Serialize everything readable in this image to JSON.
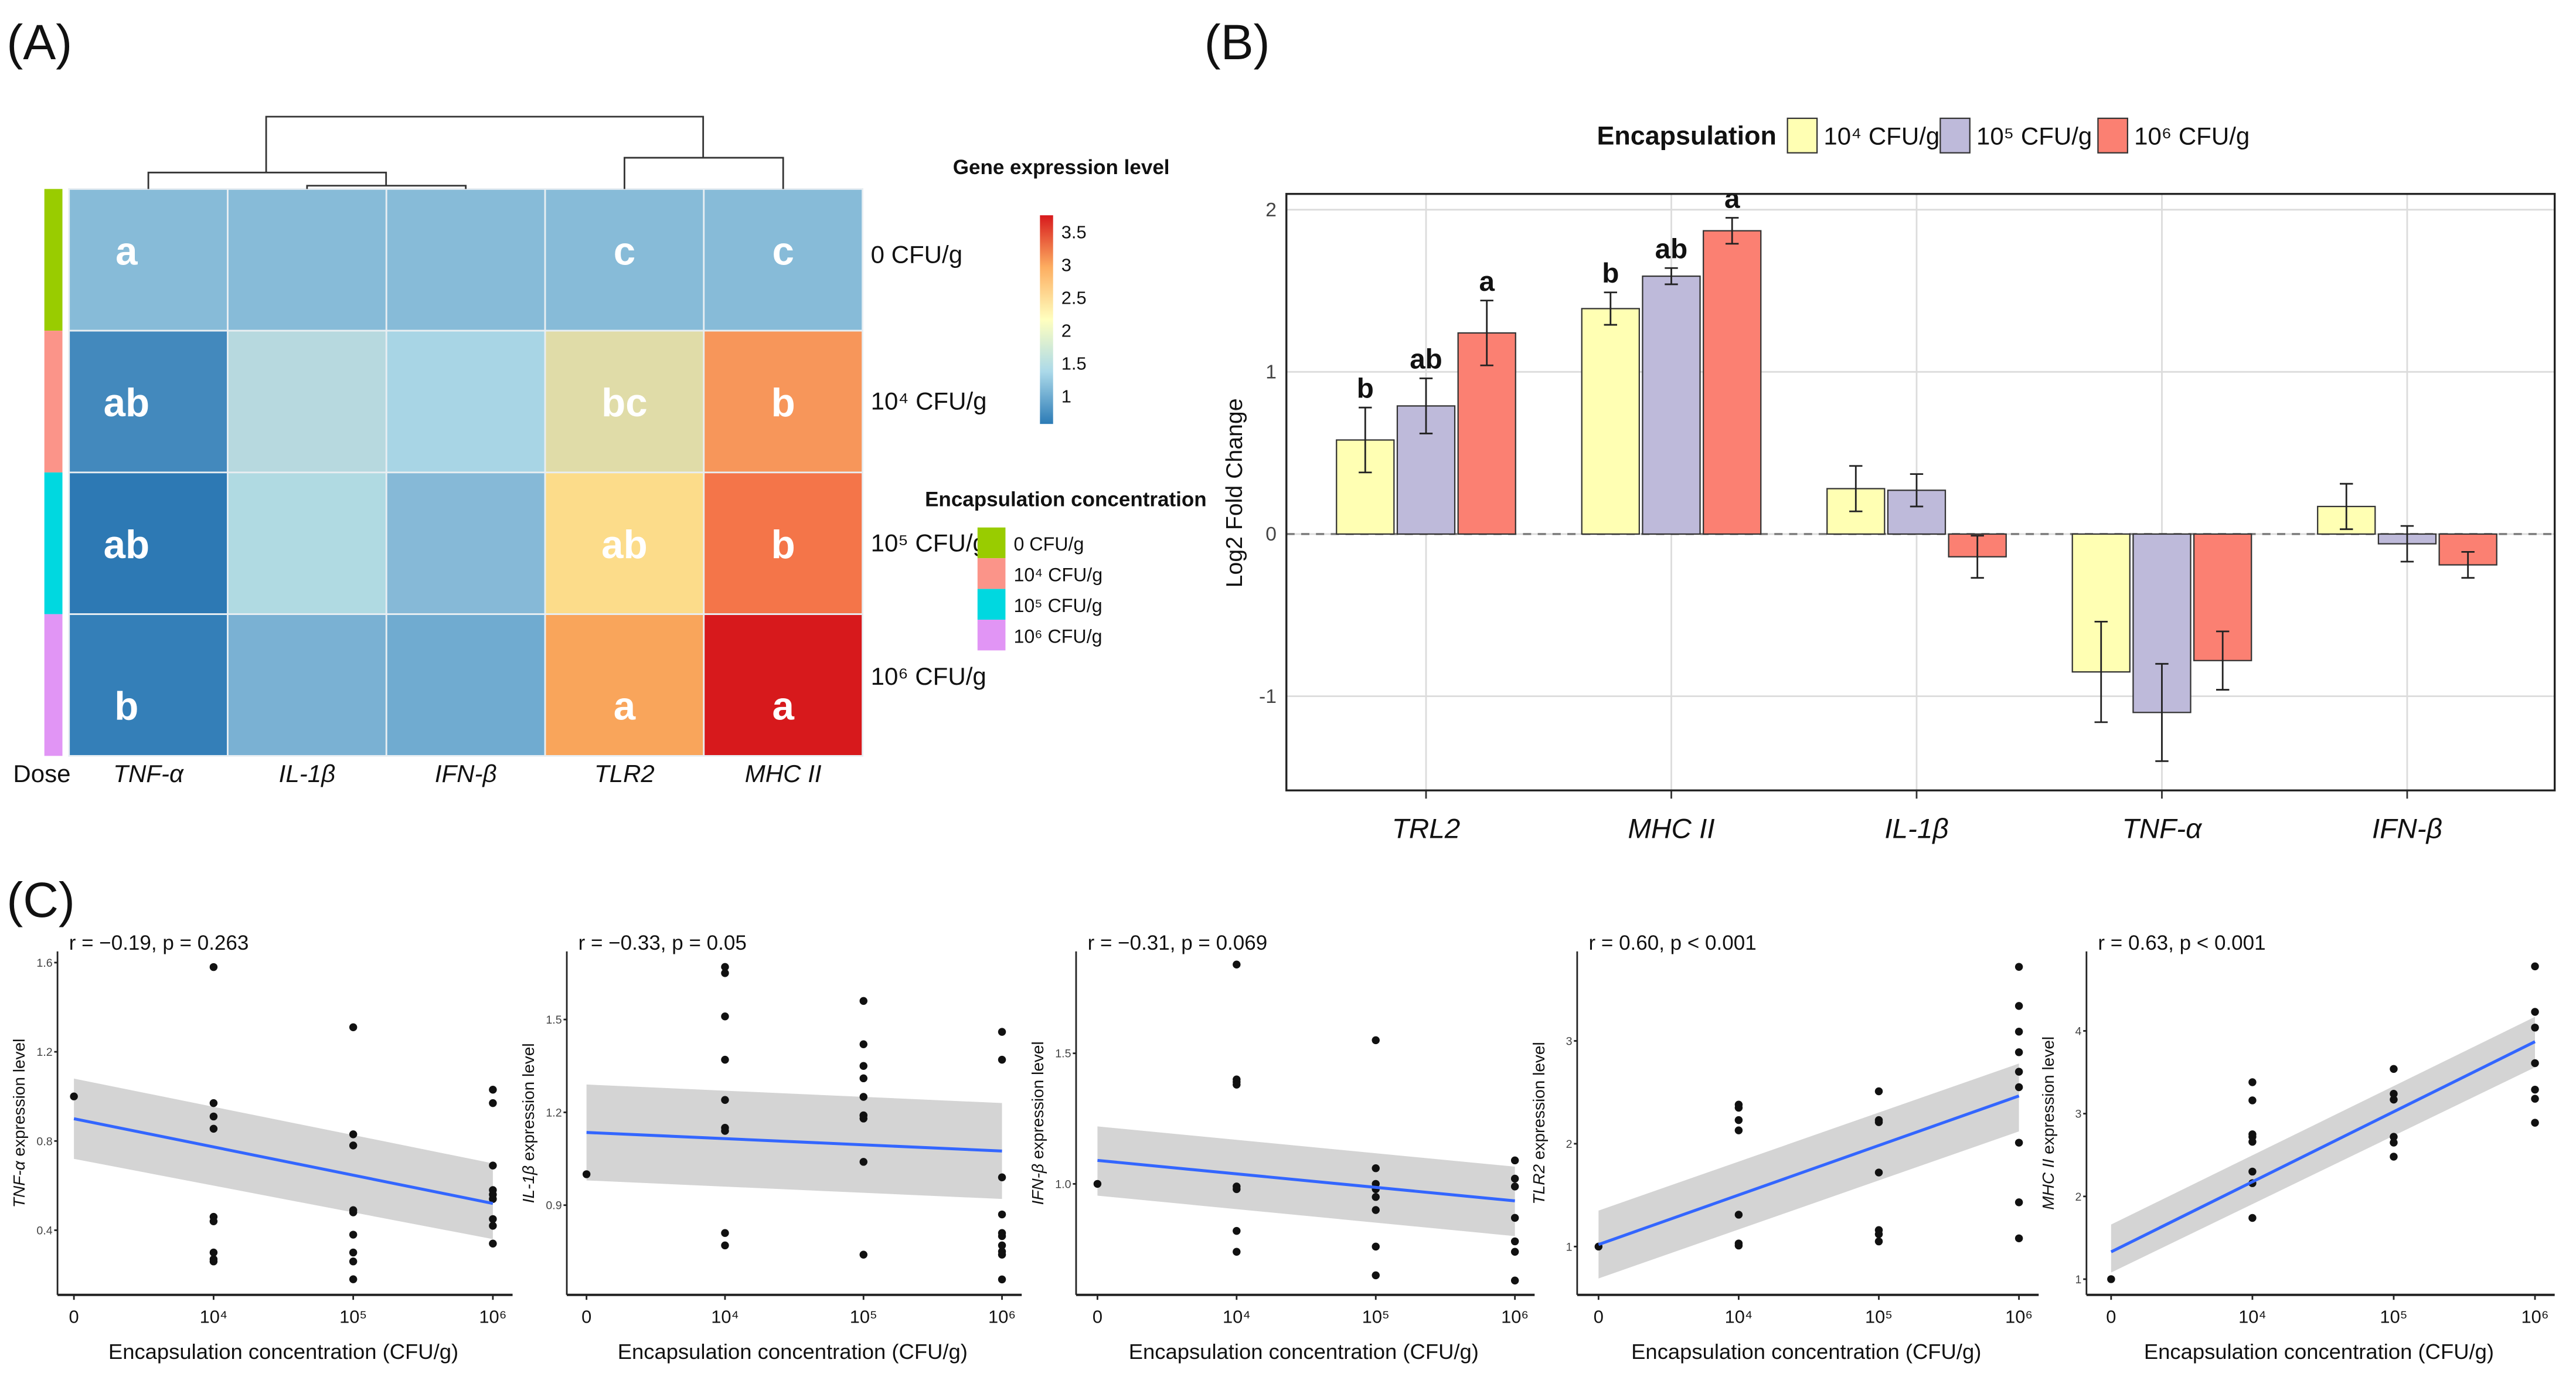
{
  "panel_labels": {
    "a": "(A)",
    "b": "(B)",
    "c": "(C)"
  },
  "chart_data": [
    {
      "type": "heatmap",
      "panel": "A",
      "columns": [
        "TNF-α",
        "IL-1β",
        "IFN-β",
        "TLR2",
        "MHC II"
      ],
      "rows": [
        "0 CFU/g",
        "10⁴ CFU/g",
        "10⁵ CFU/g",
        "10⁶ CFU/g"
      ],
      "annotation_label": "Dose",
      "annotation_colors": [
        "#99cc00",
        "#fb9489",
        "#00d8e0",
        "#e195f5"
      ],
      "values": [
        [
          1.0,
          1.0,
          1.0,
          1.0,
          1.0
        ],
        [
          0.55,
          1.21,
          1.13,
          1.49,
          2.62
        ],
        [
          0.47,
          1.21,
          0.96,
          1.73,
          3.01
        ],
        [
          0.58,
          0.91,
          0.88,
          2.36,
          3.66
        ]
      ],
      "cell_colors": [
        [
          "#87bbd8",
          "#87bbd8",
          "#87bbd8",
          "#87bbd8",
          "#87bbd8"
        ],
        [
          "#4389bd",
          "#b7d9df",
          "#a8d5e5",
          "#e0dca8",
          "#f7965a"
        ],
        [
          "#2d79b4",
          "#b0dae2",
          "#86b9d7",
          "#fcdc8a",
          "#f47549"
        ],
        [
          "#347fb8",
          "#7ab1d3",
          "#70abd0",
          "#f9a55b",
          "#d7191c"
        ]
      ],
      "letters": [
        [
          "a",
          "",
          "",
          "c",
          "c"
        ],
        [
          "ab",
          "",
          "",
          "bc",
          "b"
        ],
        [
          "ab",
          "",
          "",
          "ab",
          "b"
        ],
        [
          "b",
          "",
          "",
          "a",
          "a"
        ]
      ],
      "dendrogram": "columns clustered: (TNF-α, (IL-1β, IFN-β)), (TLR2, MHC II)",
      "colorbar": {
        "title": "Gene expression level",
        "ticks": [
          "3.5",
          "3",
          "2.5",
          "2",
          "1.5",
          "1"
        ],
        "tick_values": [
          3.5,
          3,
          2.5,
          2,
          1.5,
          1
        ],
        "range": [
          0.6,
          3.75
        ],
        "colors": [
          "#d7191c",
          "#fdae61",
          "#ffffbf",
          "#abd9e9",
          "#2c7bb6"
        ]
      },
      "legend": {
        "title": "Encapsulation concentration",
        "items": [
          "0 CFU/g",
          "10⁴ CFU/g",
          "10⁵ CFU/g",
          "10⁶ CFU/g"
        ]
      }
    },
    {
      "type": "bar",
      "panel": "B",
      "categories": [
        "TRL2",
        "MHC II",
        "IL-1β",
        "TNF-α",
        "IFN-β"
      ],
      "ylabel": "Log2 Fold Change",
      "ylim": [
        -1.57,
        2.1
      ],
      "yticks": [
        -1,
        0,
        1,
        2
      ],
      "ytick_labels": [
        "-1",
        "0",
        "1",
        "2"
      ],
      "grid": true,
      "legend": {
        "title": "Encapsulation",
        "position": "top"
      },
      "series": [
        {
          "name": "10⁴ CFU/g",
          "color": "#ffffb3",
          "values": [
            0.58,
            1.39,
            0.28,
            -0.85,
            0.17
          ],
          "err": [
            0.2,
            0.1,
            0.14,
            0.31,
            0.14
          ],
          "letters": [
            "b",
            "b",
            "",
            "",
            ""
          ]
        },
        {
          "name": "10⁵ CFU/g",
          "color": "#bebada",
          "values": [
            0.79,
            1.59,
            0.27,
            -1.1,
            -0.06
          ],
          "err": [
            0.17,
            0.05,
            0.1,
            0.3,
            0.11
          ],
          "letters": [
            "ab",
            "ab",
            "",
            "",
            ""
          ]
        },
        {
          "name": "10⁶ CFU/g",
          "color": "#fb8072",
          "values": [
            1.24,
            1.87,
            -0.14,
            -0.78,
            -0.19
          ],
          "err": [
            0.2,
            0.08,
            0.13,
            0.18,
            0.08
          ],
          "letters": [
            "a",
            "a",
            "",
            "",
            ""
          ]
        }
      ]
    },
    {
      "type": "scatter",
      "panel": "C",
      "gene": "TNF-α",
      "title": "r = −0.19, p = 0.263",
      "ylabel_suffix": " expression level",
      "xlabel": "Encapsulation concentration (CFU/g)",
      "x_categories": [
        "0",
        "10⁴",
        "10⁵",
        "10⁶"
      ],
      "ylim": [
        0.11,
        1.65
      ],
      "yticks": [
        0.4,
        0.8,
        1.2,
        1.6
      ],
      "ytick_labels": [
        "0.4",
        "0.8",
        "1.2",
        "1.6"
      ],
      "points": [
        [
          0,
          1.0
        ],
        [
          1,
          1.58
        ],
        [
          1,
          0.97
        ],
        [
          1,
          0.91
        ],
        [
          1,
          0.855
        ],
        [
          1,
          0.46
        ],
        [
          1,
          0.44
        ],
        [
          1,
          0.3
        ],
        [
          1,
          0.27
        ],
        [
          1,
          0.26
        ],
        [
          2,
          1.31
        ],
        [
          2,
          0.83
        ],
        [
          2,
          0.78
        ],
        [
          2,
          0.49
        ],
        [
          2,
          0.48
        ],
        [
          2,
          0.38
        ],
        [
          2,
          0.3
        ],
        [
          2,
          0.26
        ],
        [
          2,
          0.18
        ],
        [
          3,
          1.03
        ],
        [
          3,
          0.97
        ],
        [
          3,
          0.69
        ],
        [
          3,
          0.58
        ],
        [
          3,
          0.56
        ],
        [
          3,
          0.54
        ],
        [
          3,
          0.45
        ],
        [
          3,
          0.42
        ],
        [
          3,
          0.34
        ]
      ],
      "fit": [
        0.9,
        0.52
      ],
      "ci_lower": [
        0.72,
        0.36
      ],
      "ci_upper": [
        1.08,
        0.7
      ]
    },
    {
      "type": "scatter",
      "panel": "C",
      "gene": "IL-1β",
      "title": "r = −0.33, p = 0.05",
      "ylabel_suffix": " expression level",
      "xlabel": "Encapsulation concentration (CFU/g)",
      "x_categories": [
        "0",
        "10⁴",
        "10⁵",
        "10⁶"
      ],
      "ylim": [
        0.61,
        1.72
      ],
      "yticks": [
        0.9,
        1.2,
        1.5
      ],
      "ytick_labels": [
        "0.9",
        "1.2",
        "1.5"
      ],
      "points": [
        [
          0,
          1.0
        ],
        [
          1,
          1.67
        ],
        [
          1,
          1.65
        ],
        [
          1,
          1.51
        ],
        [
          1,
          1.37
        ],
        [
          1,
          1.24
        ],
        [
          1,
          1.15
        ],
        [
          1,
          1.14
        ],
        [
          1,
          0.81
        ],
        [
          1,
          0.77
        ],
        [
          2,
          1.56
        ],
        [
          2,
          1.42
        ],
        [
          2,
          1.35
        ],
        [
          2,
          1.31
        ],
        [
          2,
          1.25
        ],
        [
          2,
          1.19
        ],
        [
          2,
          1.19
        ],
        [
          2,
          1.18
        ],
        [
          2,
          1.04
        ],
        [
          2,
          0.74
        ],
        [
          3,
          1.46
        ],
        [
          3,
          1.37
        ],
        [
          3,
          0.99
        ],
        [
          3,
          0.87
        ],
        [
          3,
          0.81
        ],
        [
          3,
          0.8
        ],
        [
          3,
          0.77
        ],
        [
          3,
          0.75
        ],
        [
          3,
          0.74
        ],
        [
          3,
          0.66
        ]
      ],
      "fit": [
        1.135,
        1.075
      ],
      "ci_lower": [
        0.98,
        0.92
      ],
      "ci_upper": [
        1.29,
        1.23
      ]
    },
    {
      "type": "scatter",
      "panel": "C",
      "gene": "IFN-β",
      "title": "r = −0.31, p = 0.069",
      "ylabel_suffix": " expression level",
      "xlabel": "Encapsulation concentration (CFU/g)",
      "x_categories": [
        "0",
        "10⁴",
        "10⁵",
        "10⁶"
      ],
      "ylim": [
        0.575,
        1.89
      ],
      "yticks": [
        1.0,
        1.5
      ],
      "ytick_labels": [
        "1.0",
        "1.5"
      ],
      "points": [
        [
          0,
          1.0
        ],
        [
          1,
          1.84
        ],
        [
          1,
          1.4
        ],
        [
          1,
          1.39
        ],
        [
          1,
          1.38
        ],
        [
          1,
          0.99
        ],
        [
          1,
          0.98
        ],
        [
          1,
          0.82
        ],
        [
          1,
          0.74
        ],
        [
          2,
          1.55
        ],
        [
          2,
          1.06
        ],
        [
          2,
          1.0
        ],
        [
          2,
          0.98
        ],
        [
          2,
          0.95
        ],
        [
          2,
          0.9
        ],
        [
          2,
          0.76
        ],
        [
          2,
          0.65
        ],
        [
          3,
          1.09
        ],
        [
          3,
          1.02
        ],
        [
          3,
          0.99
        ],
        [
          3,
          0.87
        ],
        [
          3,
          0.78
        ],
        [
          3,
          0.74
        ],
        [
          3,
          0.63
        ]
      ],
      "fit": [
        1.09,
        0.935
      ],
      "ci_lower": [
        0.955,
        0.8
      ],
      "ci_upper": [
        1.22,
        1.066
      ]
    },
    {
      "type": "scatter",
      "panel": "C",
      "gene": "TLR2",
      "title": "r = 0.60, p < 0.001",
      "ylabel_suffix": " expression level",
      "xlabel": "Encapsulation concentration (CFU/g)",
      "x_categories": [
        "0",
        "10⁴",
        "10⁵",
        "10⁶"
      ],
      "ylim": [
        0.53,
        3.87
      ],
      "yticks": [
        1,
        2,
        3
      ],
      "ytick_labels": [
        "1",
        "2",
        "3"
      ],
      "points": [
        [
          0,
          1.0
        ],
        [
          1,
          2.38
        ],
        [
          1,
          2.35
        ],
        [
          1,
          2.23
        ],
        [
          1,
          2.13
        ],
        [
          1,
          1.31
        ],
        [
          1,
          1.03
        ],
        [
          1,
          1.01
        ],
        [
          2,
          2.51
        ],
        [
          2,
          2.23
        ],
        [
          2,
          2.21
        ],
        [
          2,
          1.72
        ],
        [
          2,
          1.16
        ],
        [
          2,
          1.12
        ],
        [
          2,
          1.05
        ],
        [
          3,
          3.72
        ],
        [
          3,
          3.34
        ],
        [
          3,
          3.09
        ],
        [
          3,
          2.89
        ],
        [
          3,
          2.7
        ],
        [
          3,
          2.55
        ],
        [
          3,
          2.01
        ],
        [
          3,
          1.43
        ],
        [
          3,
          1.08
        ]
      ],
      "fit": [
        1.02,
        2.465
      ],
      "ci_lower": [
        0.69,
        2.12
      ],
      "ci_upper": [
        1.35,
        2.78
      ]
    },
    {
      "type": "scatter",
      "panel": "C",
      "gene": "MHC II",
      "title": "r = 0.63, p < 0.001",
      "ylabel_suffix": " expression level",
      "xlabel": "Encapsulation concentration (CFU/g)",
      "x_categories": [
        "0",
        "10⁴",
        "10⁵",
        "10⁶"
      ],
      "ylim": [
        0.81,
        4.96
      ],
      "yticks": [
        1,
        2,
        3,
        4
      ],
      "ytick_labels": [
        "1",
        "2",
        "3",
        "4"
      ],
      "points": [
        [
          0,
          1.0
        ],
        [
          1,
          3.38
        ],
        [
          1,
          3.16
        ],
        [
          1,
          2.75
        ],
        [
          1,
          2.72
        ],
        [
          1,
          2.66
        ],
        [
          1,
          2.3
        ],
        [
          1,
          2.16
        ],
        [
          1,
          1.74
        ],
        [
          2,
          3.54
        ],
        [
          2,
          3.24
        ],
        [
          2,
          3.17
        ],
        [
          2,
          2.72
        ],
        [
          2,
          2.65
        ],
        [
          2,
          2.48
        ],
        [
          3,
          4.78
        ],
        [
          3,
          4.23
        ],
        [
          3,
          4.04
        ],
        [
          3,
          3.61
        ],
        [
          3,
          3.29
        ],
        [
          3,
          3.18
        ],
        [
          3,
          2.89
        ]
      ],
      "fit": [
        1.33,
        3.87
      ],
      "ci_lower": [
        1.08,
        3.56
      ],
      "ci_upper": [
        1.66,
        4.17
      ]
    }
  ]
}
